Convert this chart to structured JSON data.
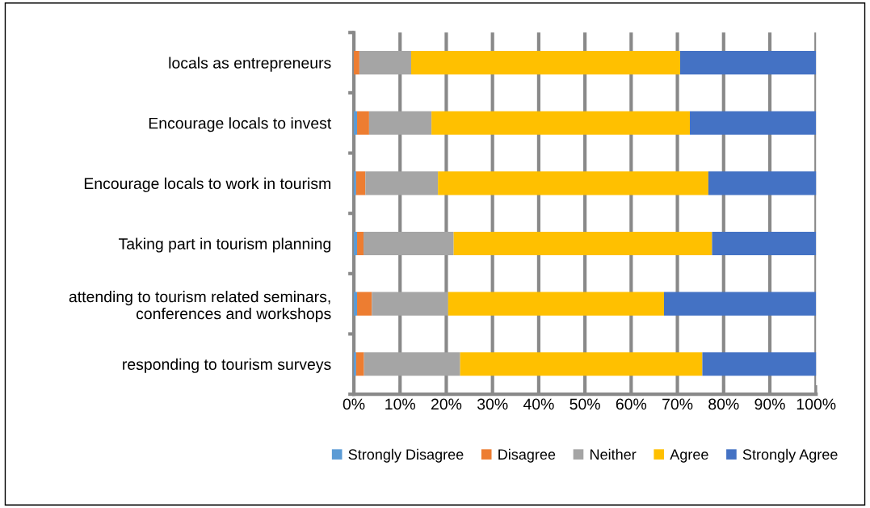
{
  "chart_data": {
    "type": "bar",
    "orientation": "horizontal",
    "stacked": true,
    "categories": [
      "locals as entrepreneurs",
      "Encourage locals to invest",
      "Encourage locals to work in tourism",
      "Taking part in tourism planning",
      "attending to tourism related seminars,\nconferences and workshops",
      "responding to tourism surveys"
    ],
    "series": [
      {
        "name": "Strongly Disagree",
        "color": "#5b9bd5",
        "values": [
          0,
          0.7,
          0.5,
          0.7,
          0.7,
          0.5
        ]
      },
      {
        "name": "Disagree",
        "color": "#ed7d31",
        "values": [
          1.2,
          2.6,
          2.0,
          1.4,
          3.2,
          1.7
        ]
      },
      {
        "name": "Neither",
        "color": "#a5a5a5",
        "values": [
          11.2,
          13.5,
          15.7,
          19.5,
          16.5,
          20.8
        ]
      },
      {
        "name": "Agree",
        "color": "#ffc000",
        "values": [
          58.2,
          55.9,
          58.5,
          55.9,
          46.7,
          52.4
        ]
      },
      {
        "name": "Strongly Agree",
        "color": "#4472c4",
        "values": [
          29.4,
          27.3,
          23.4,
          22.5,
          32.9,
          24.7
        ]
      }
    ],
    "xlim": [
      0,
      100
    ],
    "xticks": [
      {
        "value": 0,
        "label": "0%"
      },
      {
        "value": 10,
        "label": "10%"
      },
      {
        "value": 20,
        "label": "20%"
      },
      {
        "value": 30,
        "label": "30%"
      },
      {
        "value": 40,
        "label": "40%"
      },
      {
        "value": 50,
        "label": "50%"
      },
      {
        "value": 60,
        "label": "60%"
      },
      {
        "value": 70,
        "label": "70%"
      },
      {
        "value": 80,
        "label": "80%"
      },
      {
        "value": 90,
        "label": "90%"
      },
      {
        "value": 100,
        "label": "100%"
      }
    ],
    "grid": "x",
    "legend": "bottom"
  }
}
